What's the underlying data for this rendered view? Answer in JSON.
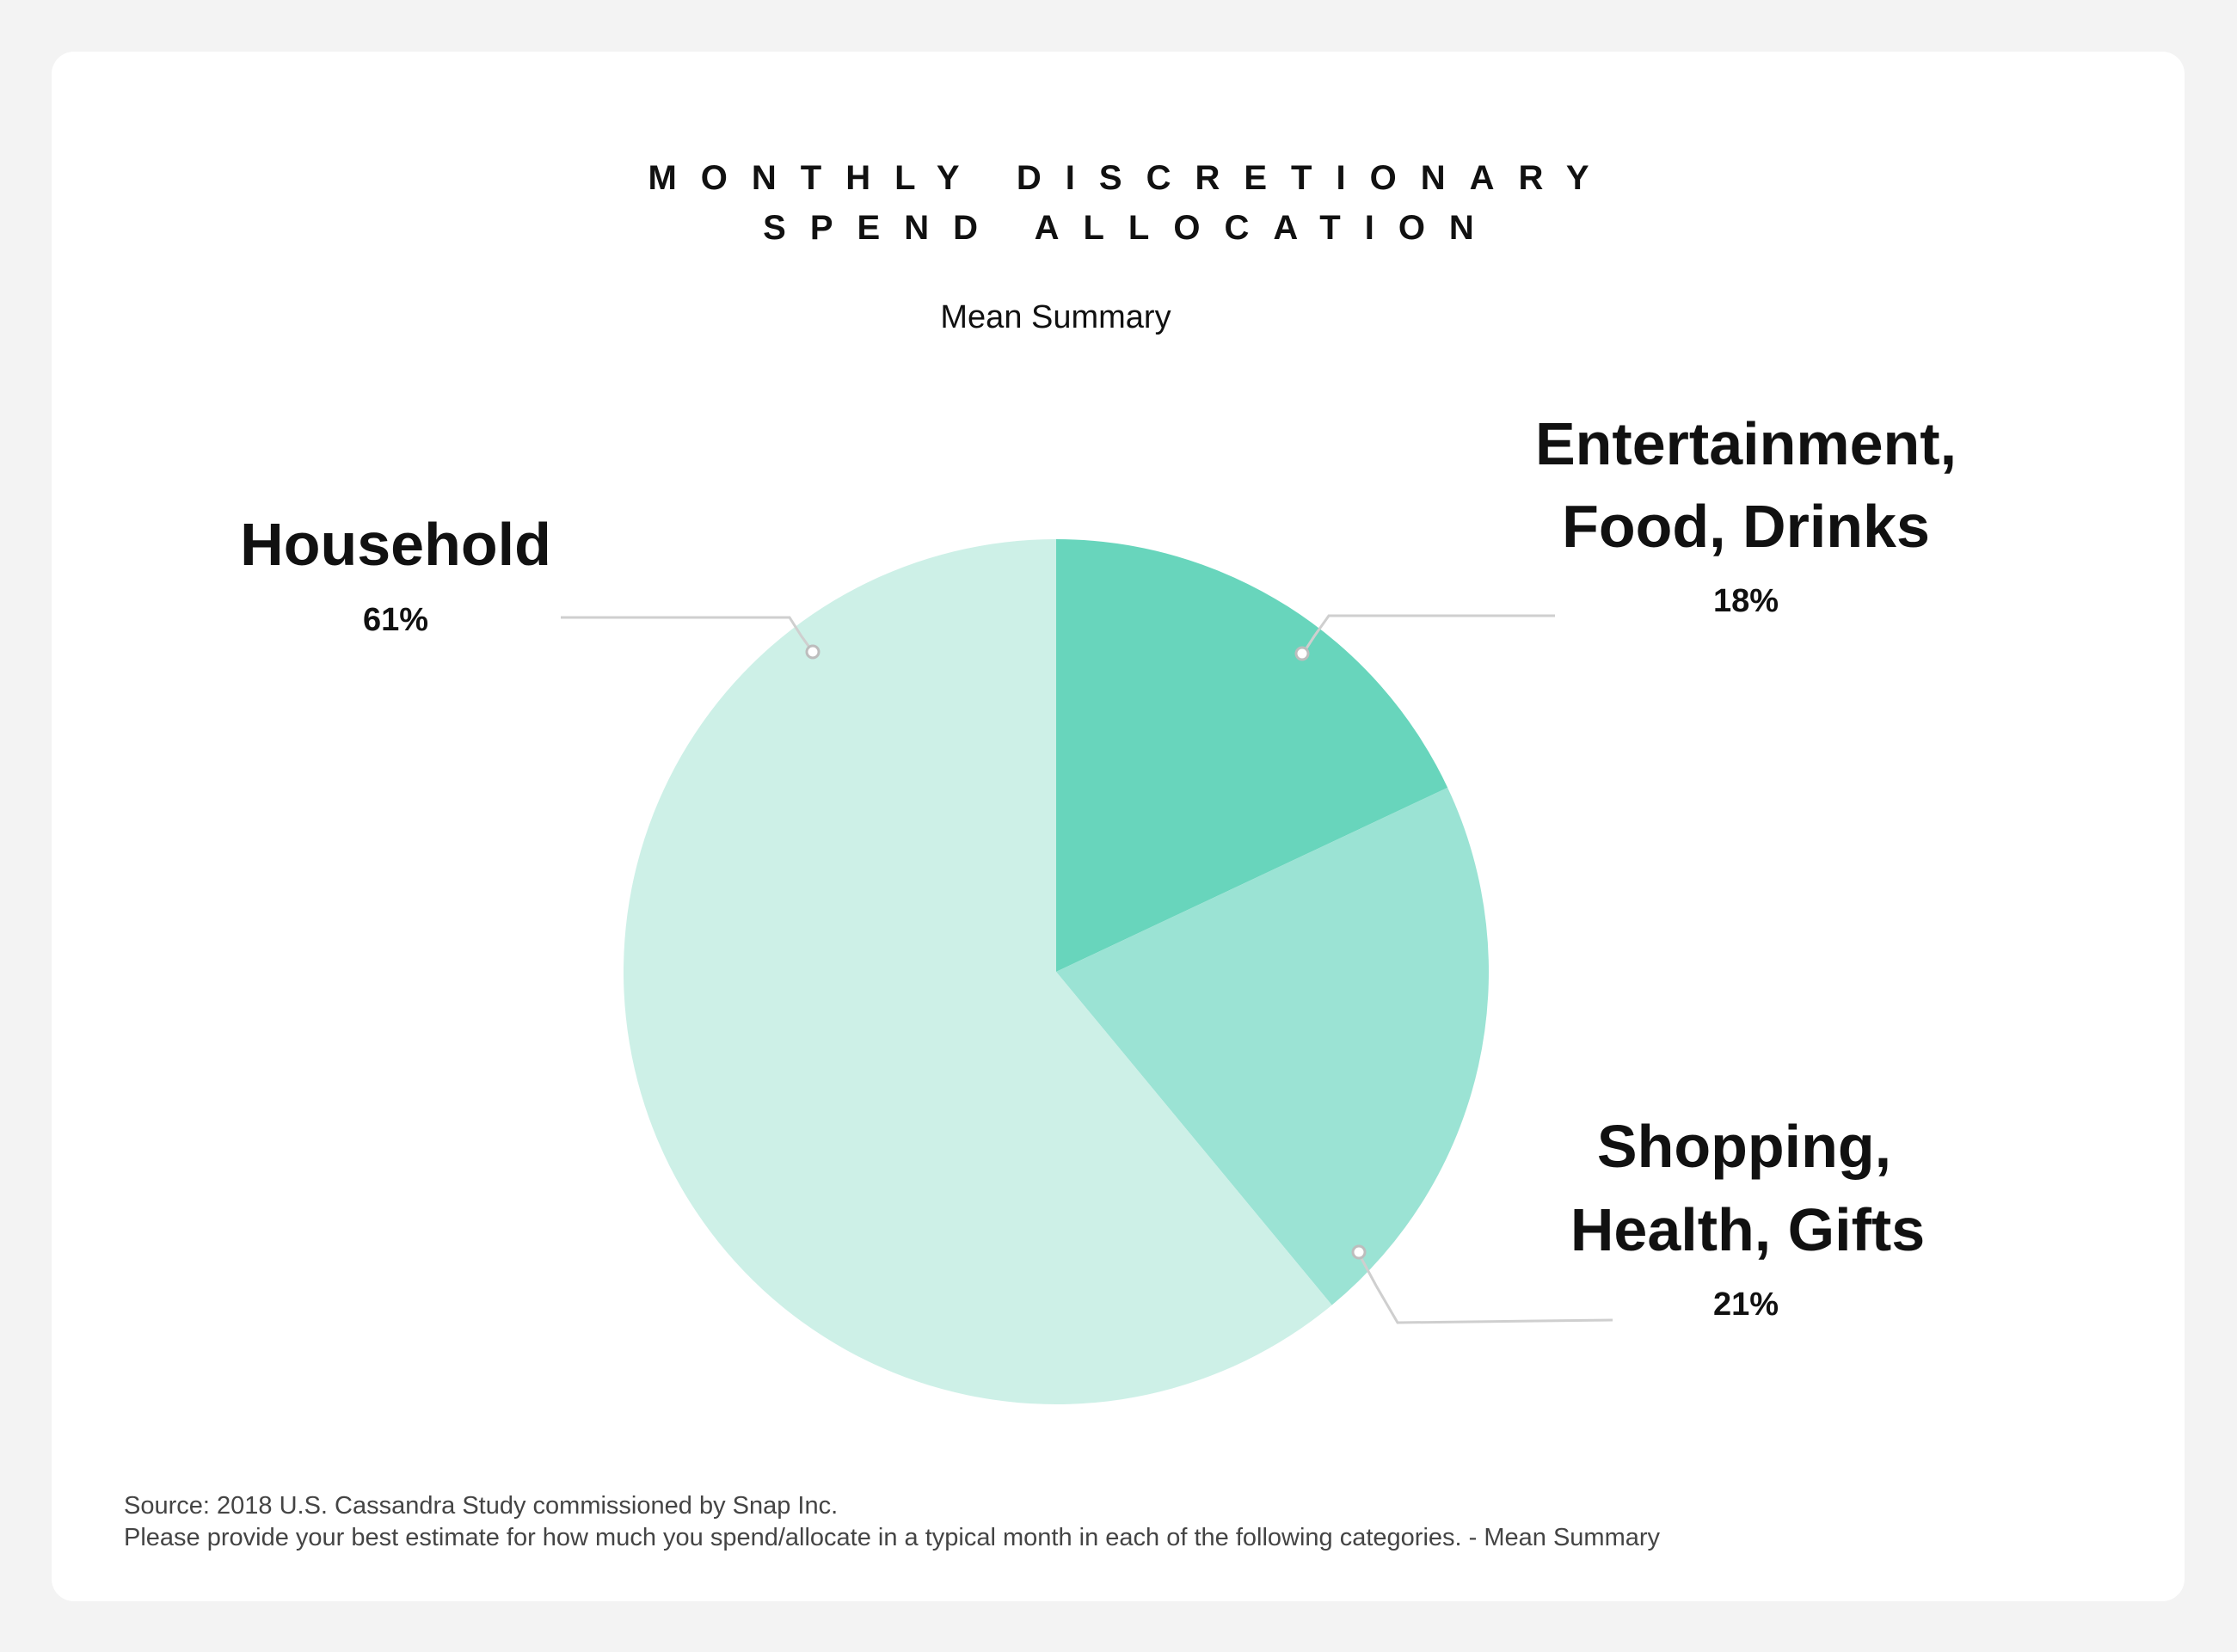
{
  "chart_data": {
    "type": "pie",
    "title": "MONTHLY DISCRETIONARY SPEND ALLOCATION",
    "title_lines": [
      "MONTHLY DISCRETIONARY",
      "SPEND ALLOCATION"
    ],
    "subtitle": "Mean Summary",
    "slices": [
      {
        "name": "Entertainment, Food, Drinks",
        "name_lines": [
          "Entertainment,",
          "Food, Drinks"
        ],
        "value": 18,
        "label": "18%",
        "color": "#68d5bc"
      },
      {
        "name": "Shopping, Health, Gifts",
        "name_lines": [
          "Shopping,",
          "Health, Gifts"
        ],
        "value": 21,
        "label": "21%",
        "color": "#9be3d4"
      },
      {
        "name": "Household",
        "name_lines": [
          "Household"
        ],
        "value": 61,
        "label": "61%",
        "color": "#cdf0e7"
      }
    ]
  },
  "footer": {
    "source": "Source: 2018 U.S. Cassandra Study commissioned by Snap Inc.",
    "question": "Please provide your best estimate for how much you spend/allocate in a typical month in each of the following categories. - Mean Summary"
  },
  "colors": {
    "background": "#f3f3f3",
    "card": "#ffffff",
    "leader_line": "#cfcfcf"
  }
}
